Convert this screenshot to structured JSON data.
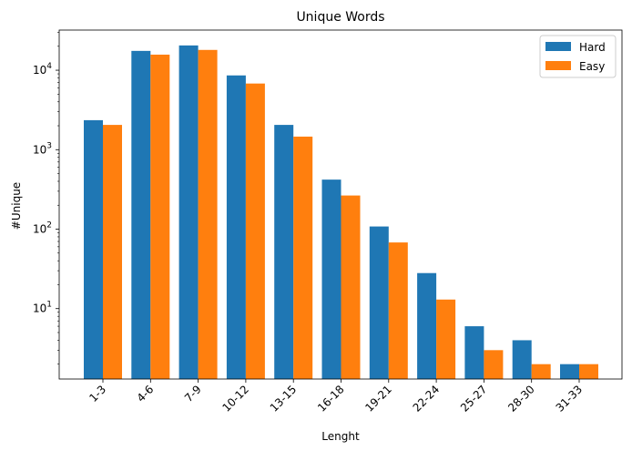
{
  "chart_data": {
    "type": "bar",
    "title": "Unique Words",
    "xlabel": "Lenght",
    "ylabel": "#Unique",
    "yscale": "log",
    "ylim": [
      1.3,
      32000
    ],
    "y_tick_labels": [
      {
        "value": 10,
        "mantissa": "10",
        "exp": "1"
      },
      {
        "value": 100,
        "mantissa": "10",
        "exp": "2"
      },
      {
        "value": 1000,
        "mantissa": "10",
        "exp": "3"
      },
      {
        "value": 10000,
        "mantissa": "10",
        "exp": "4"
      }
    ],
    "categories": [
      "1-3",
      "4-6",
      "7-9",
      "10-12",
      "13-15",
      "16-18",
      "19-21",
      "22-24",
      "25-27",
      "28-30",
      "31-33"
    ],
    "series": [
      {
        "name": "Hard",
        "color": "#1f77b4",
        "values": [
          2350,
          17500,
          20500,
          8600,
          2050,
          420,
          108,
          28,
          6,
          4,
          2
        ]
      },
      {
        "name": "Easy",
        "color": "#ff7f0e",
        "values": [
          2050,
          15700,
          18000,
          6800,
          1460,
          265,
          68,
          13,
          3,
          2,
          2
        ]
      }
    ],
    "legend_position": "top-right",
    "grid": false
  }
}
